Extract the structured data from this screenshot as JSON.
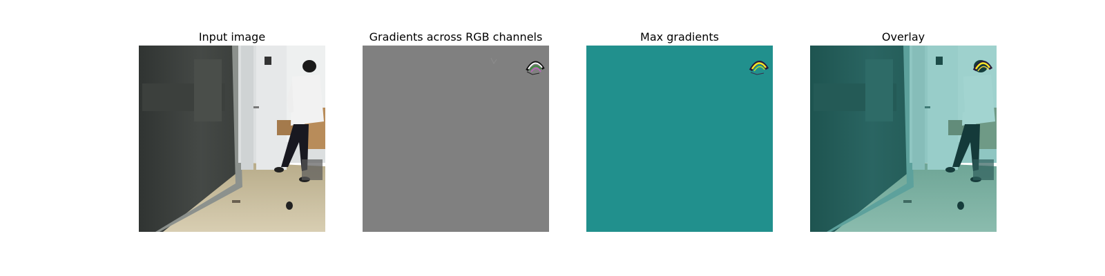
{
  "panels": [
    {
      "title": "Input image"
    },
    {
      "title": "Gradients across RGB channels"
    },
    {
      "title": "Max gradients"
    },
    {
      "title": "Overlay"
    }
  ],
  "colors": {
    "gradient_gray": "#808080",
    "max_teal": "#21908d",
    "heat_yellow": "#fde725",
    "heat_dark": "#2a1a3a"
  }
}
